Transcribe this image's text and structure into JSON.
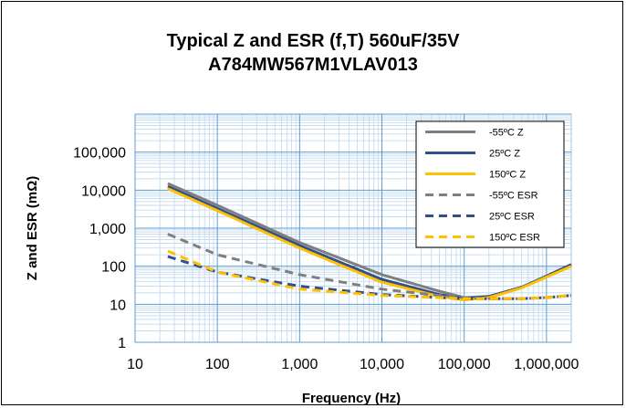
{
  "chart_data": {
    "type": "line",
    "title": "Typical Z and ESR (f,T) 560uF/35V",
    "subtitle": "A784MW567M1VLAV013",
    "xlabel": "Frequency (Hz)",
    "ylabel": "Z and ESR (mΩ)",
    "x_scale": "log",
    "y_scale": "log",
    "xlim": [
      10,
      2000000
    ],
    "ylim": [
      1,
      1000000
    ],
    "x_ticks": [
      10,
      100,
      1000,
      10000,
      100000,
      1000000
    ],
    "x_tick_labels": [
      "10",
      "100",
      "1,000",
      "10,000",
      "100,000",
      "1,000,000"
    ],
    "y_ticks": [
      1,
      10,
      100,
      1000,
      10000,
      100000
    ],
    "y_tick_labels": [
      "1",
      "10",
      "100",
      "1,000",
      "10,000",
      "100,000"
    ],
    "grid": true,
    "legend_position": "top-right",
    "series": [
      {
        "name": "-55ºC Z",
        "color": "#7f7f7f",
        "dash": false,
        "x": [
          25,
          100,
          1000,
          10000,
          50000,
          100000,
          200000,
          500000,
          1000000,
          2000000
        ],
        "y": [
          15000,
          4000,
          420,
          60,
          22,
          15,
          16,
          28,
          55,
          110
        ]
      },
      {
        "name": "25ºC Z",
        "color": "#2f4f8f",
        "dash": false,
        "x": [
          25,
          100,
          1000,
          10000,
          50000,
          100000,
          200000,
          500000,
          1000000,
          2000000
        ],
        "y": [
          12500,
          3300,
          350,
          45,
          18,
          14,
          16,
          28,
          55,
          110
        ]
      },
      {
        "name": "150ºC Z",
        "color": "#ffc000",
        "dash": false,
        "x": [
          25,
          100,
          1000,
          10000,
          50000,
          100000,
          200000,
          500000,
          1000000,
          2000000
        ],
        "y": [
          11000,
          2900,
          300,
          38,
          16,
          13,
          15,
          27,
          52,
          100
        ]
      },
      {
        "name": "-55ºC ESR",
        "color": "#7f7f7f",
        "dash": true,
        "x": [
          25,
          100,
          1000,
          10000,
          50000,
          100000,
          200000,
          500000,
          1000000,
          2000000
        ],
        "y": [
          700,
          200,
          60,
          25,
          17,
          15,
          14,
          14,
          15,
          17
        ]
      },
      {
        "name": "25ºC ESR",
        "color": "#2f4f8f",
        "dash": true,
        "x": [
          25,
          100,
          1000,
          10000,
          50000,
          100000,
          200000,
          500000,
          1000000,
          2000000
        ],
        "y": [
          180,
          70,
          30,
          18,
          15,
          14,
          14,
          14,
          15,
          17
        ]
      },
      {
        "name": "150ºC ESR",
        "color": "#ffc000",
        "dash": true,
        "x": [
          25,
          100,
          1000,
          10000,
          50000,
          100000,
          200000,
          500000,
          1000000,
          2000000
        ],
        "y": [
          250,
          70,
          25,
          17,
          15,
          14,
          14,
          14,
          15,
          17
        ]
      }
    ]
  }
}
